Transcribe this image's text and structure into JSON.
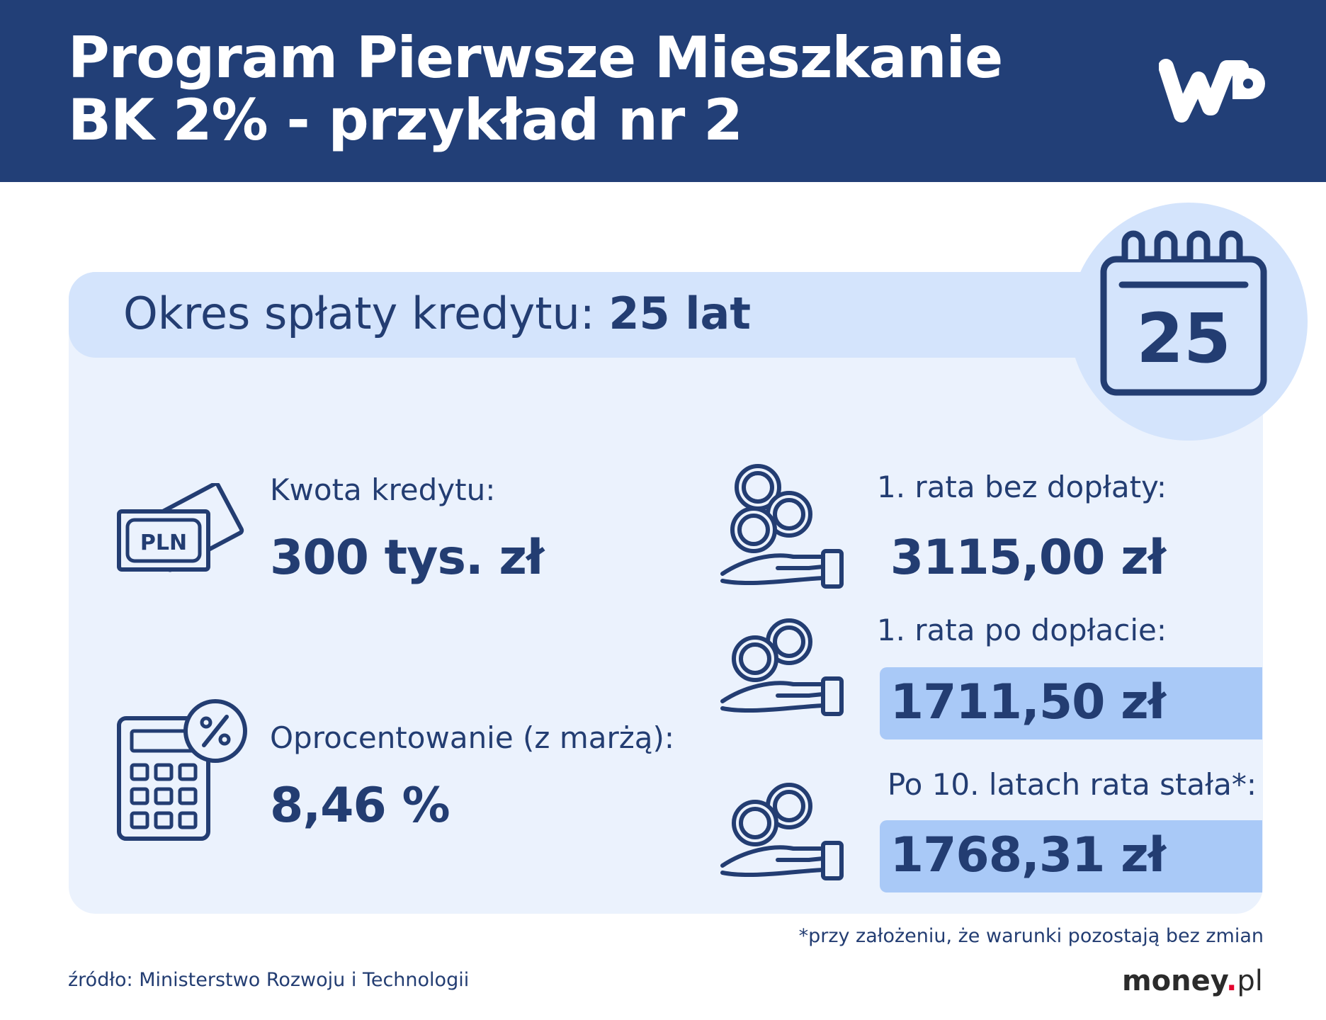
{
  "header": {
    "title_line1": "Program Pierwsze Mieszkanie",
    "title_line2": "BK 2% - przykład nr 2",
    "logo": "WP"
  },
  "period": {
    "label": "Okres spłaty kredytu:",
    "value": "25 lat",
    "calendar_number": "25"
  },
  "loan_amount": {
    "icon": "banknote-pln-icon",
    "note_text": "PLN",
    "label": "Kwota kredytu:",
    "value": "300 tys. zł"
  },
  "interest": {
    "icon": "calculator-percent-icon",
    "label": "Oprocentowanie (z marżą):",
    "value": "8,46 %"
  },
  "installments": [
    {
      "icon": "hand-coins-icon",
      "label": "1. rata bez dopłaty:",
      "value": "3115,00 zł",
      "highlight": false
    },
    {
      "icon": "hand-coins-icon",
      "label": "1. rata po dopłacie:",
      "value": "1711,50 zł",
      "highlight": true
    },
    {
      "icon": "hand-coins-icon",
      "label": "Po 10. latach rata stała*:",
      "value": "1768,31 zł",
      "highlight": true
    }
  ],
  "footnote": "*przy założeniu, że warunki pozostają bez zmian",
  "source": "źródło: Ministerstwo Rozwoju i Technologii",
  "brand": {
    "name": "money",
    "dot": ".",
    "tld": "pl"
  },
  "colors": {
    "header_bg": "#223f77",
    "text": "#233d72",
    "panel_bg": "#ebf2fd",
    "band_bg": "#d4e4fc",
    "highlight_bg": "#a9c9f7",
    "brand_dot": "#e4032e"
  }
}
